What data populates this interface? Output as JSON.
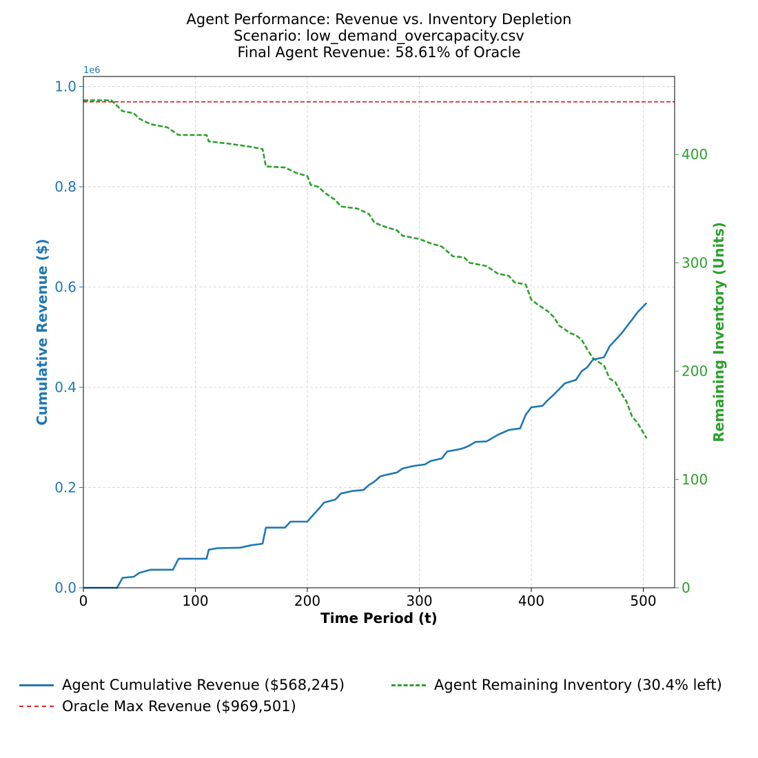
{
  "title_lines": [
    "Agent Performance: Revenue vs. Inventory Depletion",
    "Scenario: low_demand_overcapacity.csv",
    "Final Agent Revenue: 58.61% of Oracle"
  ],
  "colors": {
    "revenue": "#1f77b4",
    "inventory": "#2ca02c",
    "oracle": "#d62728",
    "grid": "#cccccc"
  },
  "legend": {
    "location": "bottom-center",
    "entries": [
      "Agent Cumulative Revenue ($568,245)",
      "Agent Remaining Inventory (30.4% left)",
      "Oracle Max Revenue ($969,501)"
    ]
  },
  "chart_data": {
    "type": "line",
    "title": "Agent Performance: Revenue vs. Inventory Depletion\nScenario: low_demand_overcapacity.csv\nFinal Agent Revenue: 58.61% of Oracle",
    "xlabel": "Time Period (t)",
    "ylabel": "Cumulative Revenue ($)",
    "y2label": "Remaining Inventory (Units)",
    "xlim": [
      0,
      528
    ],
    "ylim": [
      0,
      1020000
    ],
    "y2lim": [
      0,
      472
    ],
    "x_ticks": [
      0,
      100,
      200,
      300,
      400,
      500
    ],
    "y_ticks": [
      0,
      200000,
      400000,
      600000,
      800000,
      1000000
    ],
    "y_tick_labels": [
      "0.0",
      "0.2",
      "0.4",
      "0.6",
      "0.8",
      "1.0"
    ],
    "y_offset_label": "1e6",
    "y2_ticks": [
      0,
      100,
      200,
      300,
      400
    ],
    "grid": true,
    "series": [
      {
        "name": "Agent Cumulative Revenue ($568,245)",
        "axis": "left",
        "style": "solid",
        "x": [
          0,
          30,
          35,
          45,
          50,
          60,
          80,
          85,
          110,
          112,
          120,
          140,
          150,
          160,
          163,
          180,
          185,
          200,
          203,
          210,
          215,
          225,
          230,
          240,
          250,
          255,
          260,
          265,
          270,
          280,
          285,
          295,
          305,
          310,
          320,
          325,
          335,
          340,
          345,
          350,
          360,
          370,
          375,
          380,
          390,
          395,
          400,
          410,
          415,
          420,
          430,
          440,
          445,
          450,
          455,
          465,
          470,
          480,
          490,
          495,
          503
        ],
        "y": [
          0,
          0,
          20000,
          22000,
          30000,
          36000,
          36000,
          58000,
          58000,
          76000,
          79000,
          80000,
          85000,
          88000,
          120000,
          120000,
          132000,
          132000,
          140000,
          157000,
          170000,
          176000,
          188000,
          193000,
          195000,
          205000,
          212000,
          222000,
          225000,
          230000,
          238000,
          243000,
          246000,
          253000,
          258000,
          272000,
          276000,
          279000,
          284000,
          291000,
          292000,
          305000,
          310000,
          315000,
          318000,
          345000,
          360000,
          363000,
          375000,
          385000,
          408000,
          415000,
          432000,
          440000,
          455000,
          460000,
          482000,
          506000,
          535000,
          550000,
          568245
        ]
      },
      {
        "name": "Agent Remaining Inventory (30.4% left)",
        "axis": "right",
        "style": "dashed",
        "x": [
          0,
          25,
          35,
          45,
          50,
          60,
          75,
          85,
          110,
          112,
          130,
          150,
          160,
          163,
          180,
          190,
          200,
          203,
          210,
          215,
          225,
          230,
          245,
          255,
          260,
          270,
          280,
          285,
          300,
          310,
          320,
          330,
          340,
          345,
          360,
          370,
          380,
          385,
          395,
          400,
          405,
          415,
          420,
          425,
          435,
          440,
          445,
          450,
          455,
          465,
          470,
          475,
          480,
          485,
          490,
          495,
          503
        ],
        "y": [
          450,
          450,
          440,
          438,
          433,
          428,
          425,
          418,
          418,
          412,
          410,
          407,
          405,
          389,
          388,
          383,
          380,
          372,
          370,
          365,
          358,
          352,
          350,
          345,
          337,
          333,
          330,
          325,
          322,
          318,
          315,
          306,
          305,
          300,
          297,
          290,
          288,
          282,
          280,
          266,
          262,
          255,
          250,
          242,
          235,
          233,
          229,
          220,
          212,
          205,
          193,
          190,
          180,
          172,
          158,
          152,
          138
        ]
      },
      {
        "name": "Oracle Max Revenue ($969,501)",
        "axis": "left",
        "style": "dashed",
        "constant": 969501
      }
    ]
  }
}
